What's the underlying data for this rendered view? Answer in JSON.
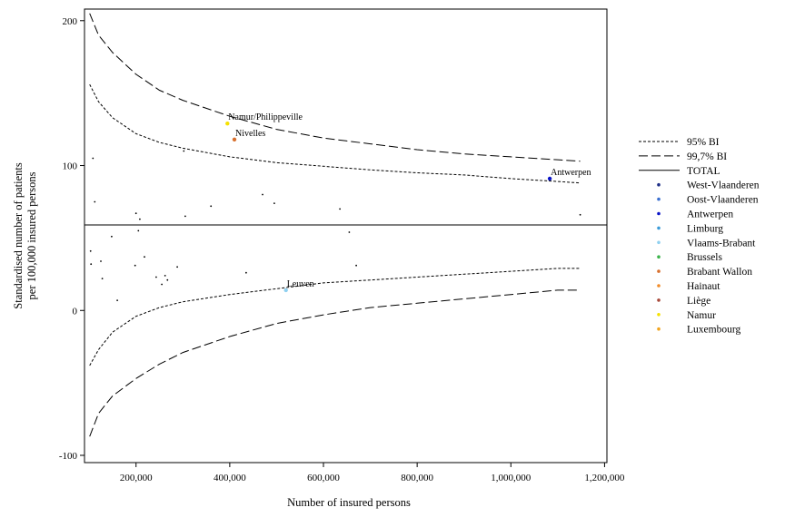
{
  "chart_data": {
    "type": "scatter",
    "title": "",
    "xlabel": "Number of insured persons",
    "ylabel": "Standardised number of patients per 100,000 insured persons",
    "ylabel_lines": [
      "Standardised number of patients",
      "per 100,000 insured persons"
    ],
    "xlim": [
      90000,
      1205000
    ],
    "ylim": [
      -105,
      208
    ],
    "x_ticks": [
      200000,
      400000,
      600000,
      800000,
      1000000,
      1200000
    ],
    "x_tick_labels": [
      "200,000",
      "400,000",
      "600,000",
      "800,000",
      "1,000,000",
      "1,200,000"
    ],
    "y_ticks": [
      -100,
      0,
      100,
      200
    ],
    "y_tick_labels": [
      "-100",
      "0",
      "100",
      "200"
    ],
    "grid": false,
    "legend_position": "right",
    "total_line": {
      "name": "TOTAL",
      "y": 59
    },
    "bands": [
      {
        "name": "95% BI",
        "style": "short-dash",
        "upper": [
          [
            101000,
            156
          ],
          [
            120000,
            144
          ],
          [
            150000,
            133
          ],
          [
            200000,
            122
          ],
          [
            250000,
            116
          ],
          [
            300000,
            112
          ],
          [
            400000,
            106
          ],
          [
            500000,
            102
          ],
          [
            600000,
            99.5
          ],
          [
            700000,
            97
          ],
          [
            800000,
            95
          ],
          [
            900000,
            93.5
          ],
          [
            1000000,
            91
          ],
          [
            1100000,
            89
          ],
          [
            1148000,
            88
          ]
        ],
        "lower": [
          [
            101000,
            -38
          ],
          [
            120000,
            -27
          ],
          [
            150000,
            -15
          ],
          [
            200000,
            -4
          ],
          [
            250000,
            2
          ],
          [
            300000,
            6
          ],
          [
            400000,
            11
          ],
          [
            500000,
            15
          ],
          [
            600000,
            19
          ],
          [
            700000,
            21
          ],
          [
            800000,
            23
          ],
          [
            900000,
            25
          ],
          [
            1000000,
            27
          ],
          [
            1100000,
            29
          ],
          [
            1148000,
            29
          ]
        ]
      },
      {
        "name": "99,7% BI",
        "style": "long-dash",
        "upper": [
          [
            101000,
            205
          ],
          [
            120000,
            190
          ],
          [
            150000,
            178
          ],
          [
            200000,
            163
          ],
          [
            250000,
            152
          ],
          [
            300000,
            145
          ],
          [
            400000,
            134
          ],
          [
            500000,
            125
          ],
          [
            600000,
            119
          ],
          [
            700000,
            115
          ],
          [
            800000,
            111
          ],
          [
            900000,
            108
          ],
          [
            1000000,
            106
          ],
          [
            1100000,
            104
          ],
          [
            1148000,
            103
          ]
        ],
        "lower": [
          [
            101000,
            -87
          ],
          [
            120000,
            -71
          ],
          [
            150000,
            -59
          ],
          [
            200000,
            -47
          ],
          [
            250000,
            -37
          ],
          [
            300000,
            -29
          ],
          [
            400000,
            -18
          ],
          [
            500000,
            -9
          ],
          [
            600000,
            -3
          ],
          [
            700000,
            2
          ],
          [
            800000,
            5
          ],
          [
            900000,
            8
          ],
          [
            1000000,
            11
          ],
          [
            1100000,
            14
          ],
          [
            1148000,
            14
          ]
        ]
      }
    ],
    "series": [
      {
        "name": "West-Vlaanderen",
        "color": "#1f2f87",
        "points": []
      },
      {
        "name": "Oost-Vlaanderen",
        "color": "#3a6fd0",
        "points": []
      },
      {
        "name": "Antwerpen",
        "color": "#0a14c8",
        "points": [
          [
            1083000,
            91
          ]
        ]
      },
      {
        "name": "Limburg",
        "color": "#3a9bd8",
        "points": []
      },
      {
        "name": "Vlaams-Brabant",
        "color": "#8fd0f0",
        "points": [
          [
            520000,
            14
          ]
        ]
      },
      {
        "name": "Brussels",
        "color": "#3cb44b",
        "points": []
      },
      {
        "name": "Brabant Wallon",
        "color": "#d8702e",
        "points": [
          [
            410000,
            118
          ]
        ]
      },
      {
        "name": "Hainaut",
        "color": "#f28c28",
        "points": []
      },
      {
        "name": "Liège",
        "color": "#a8493a",
        "points": []
      },
      {
        "name": "Namur",
        "color": "#f5e100",
        "points": [
          [
            395000,
            129
          ]
        ]
      },
      {
        "name": "Luxembourg",
        "color": "#f2a51f",
        "points": []
      }
    ],
    "other_points": [
      [
        108000,
        105
      ],
      [
        112000,
        75
      ],
      [
        148000,
        51
      ],
      [
        200000,
        67
      ],
      [
        208000,
        63
      ],
      [
        302000,
        110
      ],
      [
        305000,
        65
      ],
      [
        360000,
        72
      ],
      [
        470000,
        80
      ],
      [
        495000,
        74
      ],
      [
        635000,
        70
      ],
      [
        1148000,
        66
      ],
      [
        103000,
        41
      ],
      [
        104000,
        32
      ],
      [
        125000,
        34
      ],
      [
        128000,
        22
      ],
      [
        160000,
        7
      ],
      [
        205000,
        55
      ],
      [
        218000,
        37
      ],
      [
        198000,
        31
      ],
      [
        243000,
        23
      ],
      [
        255000,
        18
      ],
      [
        262000,
        24
      ],
      [
        267000,
        21
      ],
      [
        288000,
        30
      ],
      [
        435000,
        26
      ],
      [
        655000,
        54
      ],
      [
        670000,
        31
      ]
    ],
    "annotations": [
      {
        "text": "Namur/Philippeville",
        "x": 395000,
        "y": 129
      },
      {
        "text": "Nivelles",
        "x": 410000,
        "y": 118
      },
      {
        "text": "Antwerpen",
        "x": 1083000,
        "y": 91
      },
      {
        "text": "Leuven",
        "x": 520000,
        "y": 14
      }
    ]
  }
}
